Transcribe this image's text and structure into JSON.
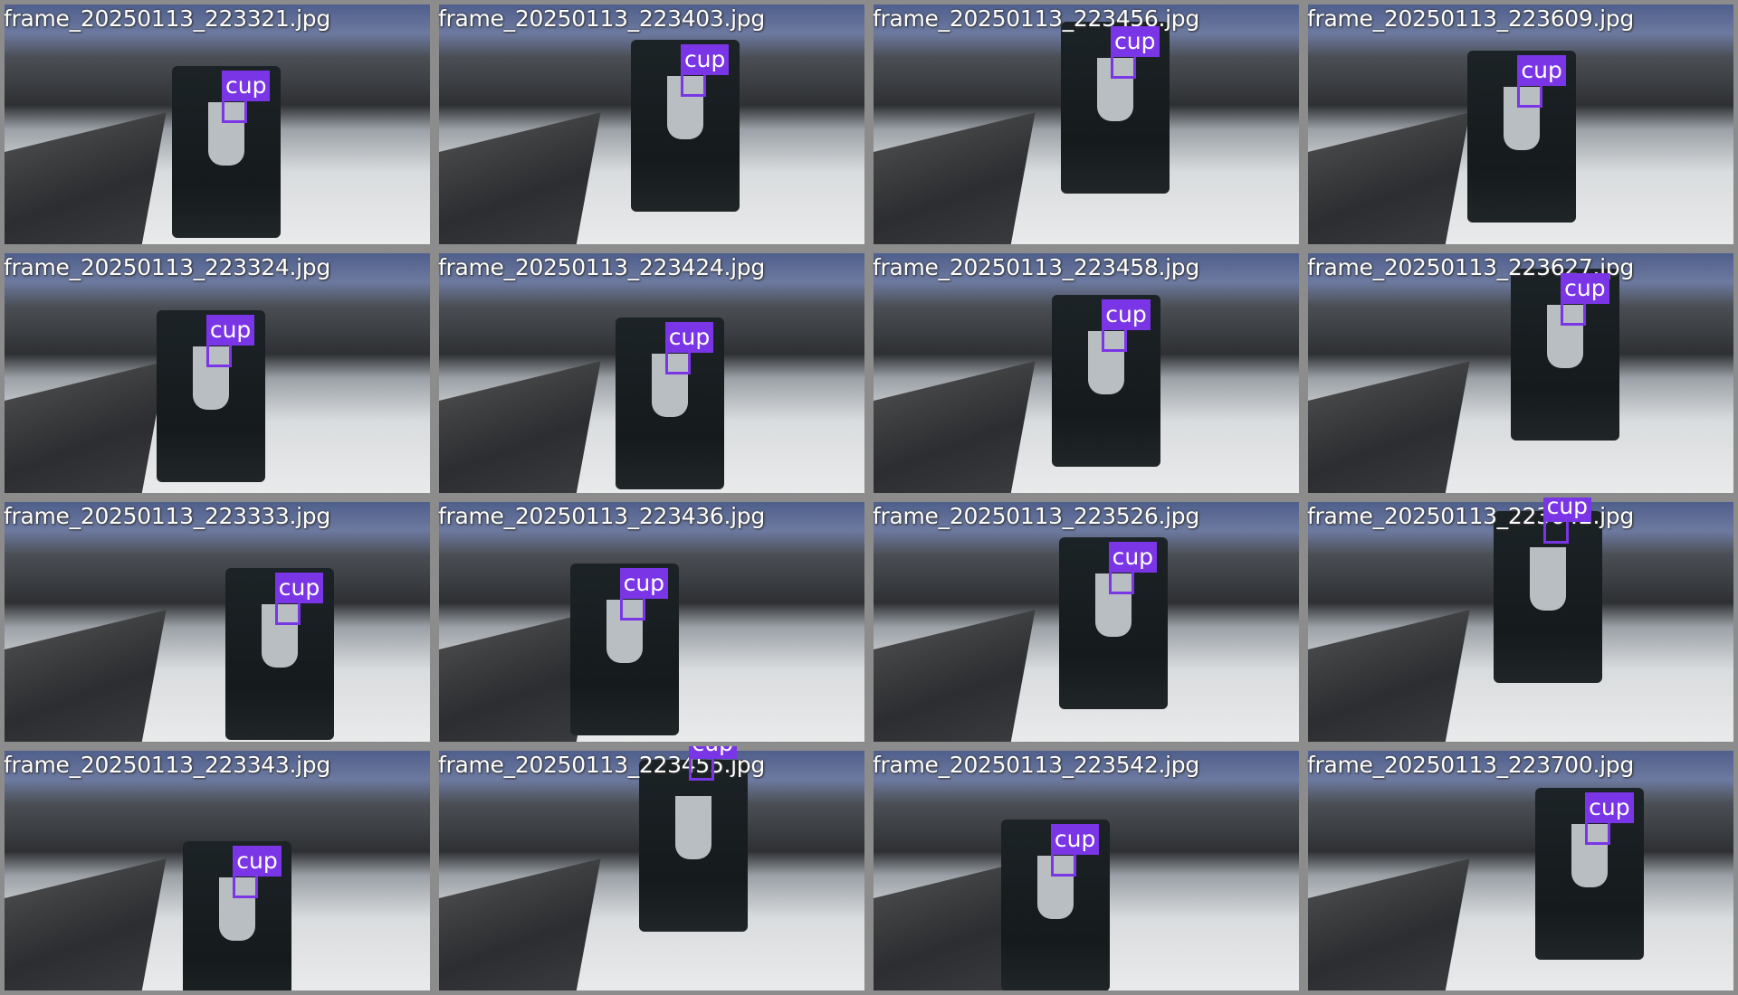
{
  "tiles": [
    {
      "filename": "frame_20250113_223321.jpg",
      "label": "cup"
    },
    {
      "filename": "frame_20250113_223403.jpg",
      "label": "cup"
    },
    {
      "filename": "frame_20250113_223456.jpg",
      "label": "cup"
    },
    {
      "filename": "frame_20250113_223609.jpg",
      "label": "cup"
    },
    {
      "filename": "frame_20250113_223324.jpg",
      "label": "cup"
    },
    {
      "filename": "frame_20250113_223424.jpg",
      "label": "cup"
    },
    {
      "filename": "frame_20250113_223458.jpg",
      "label": "cup"
    },
    {
      "filename": "frame_20250113_223627.jpg",
      "label": "cup"
    },
    {
      "filename": "frame_20250113_223333.jpg",
      "label": "cup"
    },
    {
      "filename": "frame_20250113_223436.jpg",
      "label": "cup"
    },
    {
      "filename": "frame_20250113_223526.jpg",
      "label": "cup"
    },
    {
      "filename": "frame_20250113_223642.jpg",
      "label": "cup"
    },
    {
      "filename": "frame_20250113_223343.jpg",
      "label": "cup"
    },
    {
      "filename": "frame_20250113_223455.jpg",
      "label": "cup"
    },
    {
      "filename": "frame_20250113_223542.jpg",
      "label": "cup"
    },
    {
      "filename": "frame_20250113_223700.jpg",
      "label": "cup"
    }
  ]
}
